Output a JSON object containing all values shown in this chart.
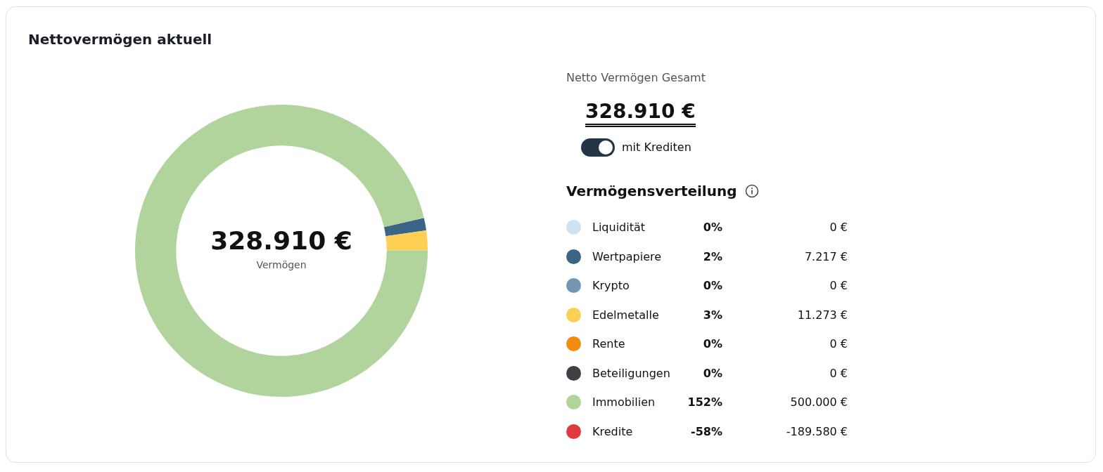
{
  "chart_data": {
    "type": "donut",
    "title": "Nettovermögen aktuell",
    "legend_title": "Vermögensverteilung",
    "legend": "right",
    "categories": [
      "Liquidität",
      "Wertpapiere",
      "Krypto",
      "Edelmetalle",
      "Rente",
      "Beteiligungen",
      "Immobilien",
      "Kredite"
    ],
    "values": [
      0,
      7217,
      0,
      11273,
      0,
      0,
      500000,
      null
    ],
    "colors": [
      "#cfe2f0",
      "#3a6587",
      "#7596b0",
      "#fdd055",
      "#f28c0f",
      "#3f3f45",
      "#b0d49c",
      "#e0393e"
    ],
    "value_labels": [
      "0 €",
      "7.217 €",
      "0 €",
      "11.273 €",
      "0 €",
      "0 €",
      "500.000 €",
      "-189.580 €"
    ],
    "annotations": [
      "328.910 €",
      "Vermögen",
      "Netto Vermögen Gesamt",
      "328.910 €",
      "mit Krediten",
      {
        "text": "0%",
        "x": "Liquidität"
      },
      {
        "text": "2%",
        "x": "Wertpapiere"
      },
      {
        "text": "0%",
        "x": "Krypto"
      },
      {
        "text": "3%",
        "x": "Edelmetalle"
      },
      {
        "text": "0%",
        "x": "Rente"
      },
      {
        "text": "0%",
        "x": "Beteiligungen"
      },
      {
        "text": "152%",
        "x": "Immobilien"
      },
      {
        "text": "-58%",
        "x": "Kredite"
      }
    ]
  }
}
